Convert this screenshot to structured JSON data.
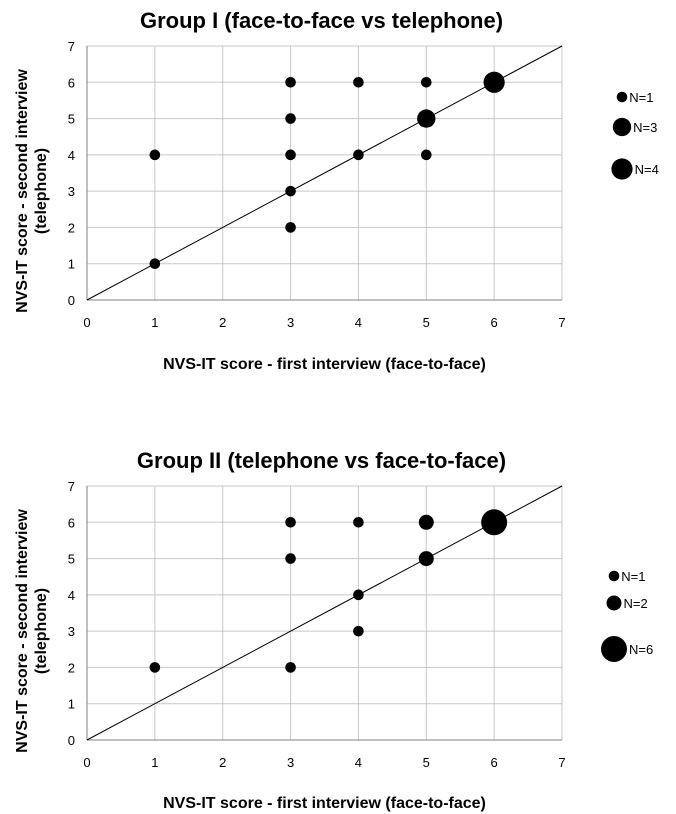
{
  "chart_data": [
    {
      "type": "scatter",
      "title": "Group I (face-to-face vs telephone)",
      "xlabel": "NVS-IT score - first interview (face-to-face)",
      "ylabel": "NVS-IT score - second interview (telephone)",
      "xlim": [
        0,
        7
      ],
      "ylim": [
        0,
        7
      ],
      "x_ticks": [
        "0",
        "1",
        "2",
        "3",
        "4",
        "5",
        "6",
        "7"
      ],
      "y_ticks": [
        "0",
        "1",
        "2",
        "3",
        "4",
        "5",
        "6",
        "7"
      ],
      "grid": true,
      "reference_line": "y = x",
      "legend_position": "right",
      "legend": [
        {
          "label": "N=1",
          "n": 1
        },
        {
          "label": "N=3",
          "n": 3
        },
        {
          "label": "N=4",
          "n": 4
        }
      ],
      "points": [
        {
          "x": 1,
          "y": 1,
          "n": 1
        },
        {
          "x": 1,
          "y": 4,
          "n": 1
        },
        {
          "x": 3,
          "y": 2,
          "n": 1
        },
        {
          "x": 3,
          "y": 3,
          "n": 1
        },
        {
          "x": 3,
          "y": 4,
          "n": 1
        },
        {
          "x": 3,
          "y": 5,
          "n": 1
        },
        {
          "x": 3,
          "y": 6,
          "n": 1
        },
        {
          "x": 4,
          "y": 4,
          "n": 1
        },
        {
          "x": 4,
          "y": 6,
          "n": 1
        },
        {
          "x": 5,
          "y": 4,
          "n": 1
        },
        {
          "x": 5,
          "y": 5,
          "n": 3
        },
        {
          "x": 5,
          "y": 6,
          "n": 1
        },
        {
          "x": 6,
          "y": 6,
          "n": 4
        }
      ]
    },
    {
      "type": "scatter",
      "title": "Group II (telephone vs face-to-face)",
      "xlabel": "NVS-IT score - first interview (face-to-face)",
      "ylabel": "NVS-IT score - second interview (telephone)",
      "xlim": [
        0,
        7
      ],
      "ylim": [
        0,
        7
      ],
      "x_ticks": [
        "0",
        "1",
        "2",
        "3",
        "4",
        "5",
        "6",
        "7"
      ],
      "y_ticks": [
        "0",
        "1",
        "2",
        "3",
        "4",
        "5",
        "6",
        "7"
      ],
      "grid": true,
      "reference_line": "y = x",
      "legend_position": "right",
      "legend": [
        {
          "label": "N=1",
          "n": 1
        },
        {
          "label": "N=2",
          "n": 2
        },
        {
          "label": "N=6",
          "n": 6
        }
      ],
      "points": [
        {
          "x": 1,
          "y": 2,
          "n": 1
        },
        {
          "x": 3,
          "y": 2,
          "n": 1
        },
        {
          "x": 3,
          "y": 5,
          "n": 1
        },
        {
          "x": 3,
          "y": 6,
          "n": 1
        },
        {
          "x": 4,
          "y": 3,
          "n": 1
        },
        {
          "x": 4,
          "y": 4,
          "n": 1
        },
        {
          "x": 4,
          "y": 6,
          "n": 1
        },
        {
          "x": 5,
          "y": 5,
          "n": 2
        },
        {
          "x": 5,
          "y": 6,
          "n": 2
        },
        {
          "x": 6,
          "y": 6,
          "n": 6
        }
      ]
    }
  ]
}
